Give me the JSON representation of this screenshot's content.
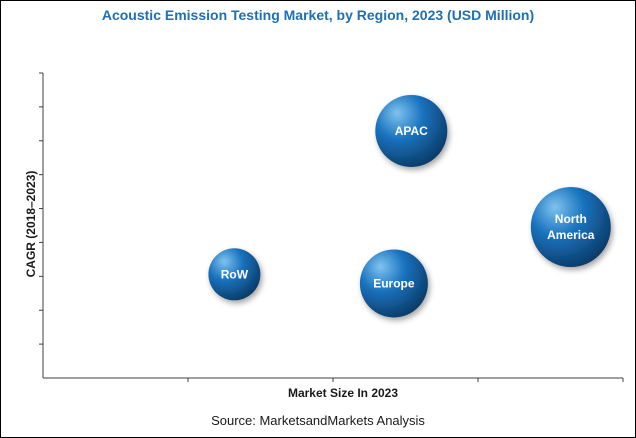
{
  "chart_data": {
    "type": "scatter",
    "title": "Acoustic Emission Testing Market, by Region, 2023 (USD Million)",
    "xlabel": "Market Size In 2023",
    "ylabel": "CAGR (2018–2023)",
    "source": "Source: MarketsandMarkets Analysis",
    "xlim": [
      0,
      100
    ],
    "ylim": [
      0,
      100
    ],
    "x_ticks": 4,
    "y_ticks": 9,
    "grid": false,
    "legend": "none",
    "points": [
      {
        "label": "APAC",
        "label_lines": [
          "APAC"
        ],
        "x": 63.5,
        "y": 81,
        "size": 36
      },
      {
        "label": "North America",
        "label_lines": [
          "North",
          "America"
        ],
        "x": 91,
        "y": 49.5,
        "size": 40
      },
      {
        "label": "RoW",
        "label_lines": [
          "RoW"
        ],
        "x": 33,
        "y": 34,
        "size": 26
      },
      {
        "label": "Europe",
        "label_lines": [
          "Europe"
        ],
        "x": 60.5,
        "y": 31,
        "size": 34
      }
    ]
  },
  "colors": {
    "title": "#1f6fb2",
    "axis": "#404040",
    "bubble_highlight": "#7fc3ee",
    "bubble_mid": "#1a73bf",
    "bubble_dark": "#0b3a66"
  }
}
